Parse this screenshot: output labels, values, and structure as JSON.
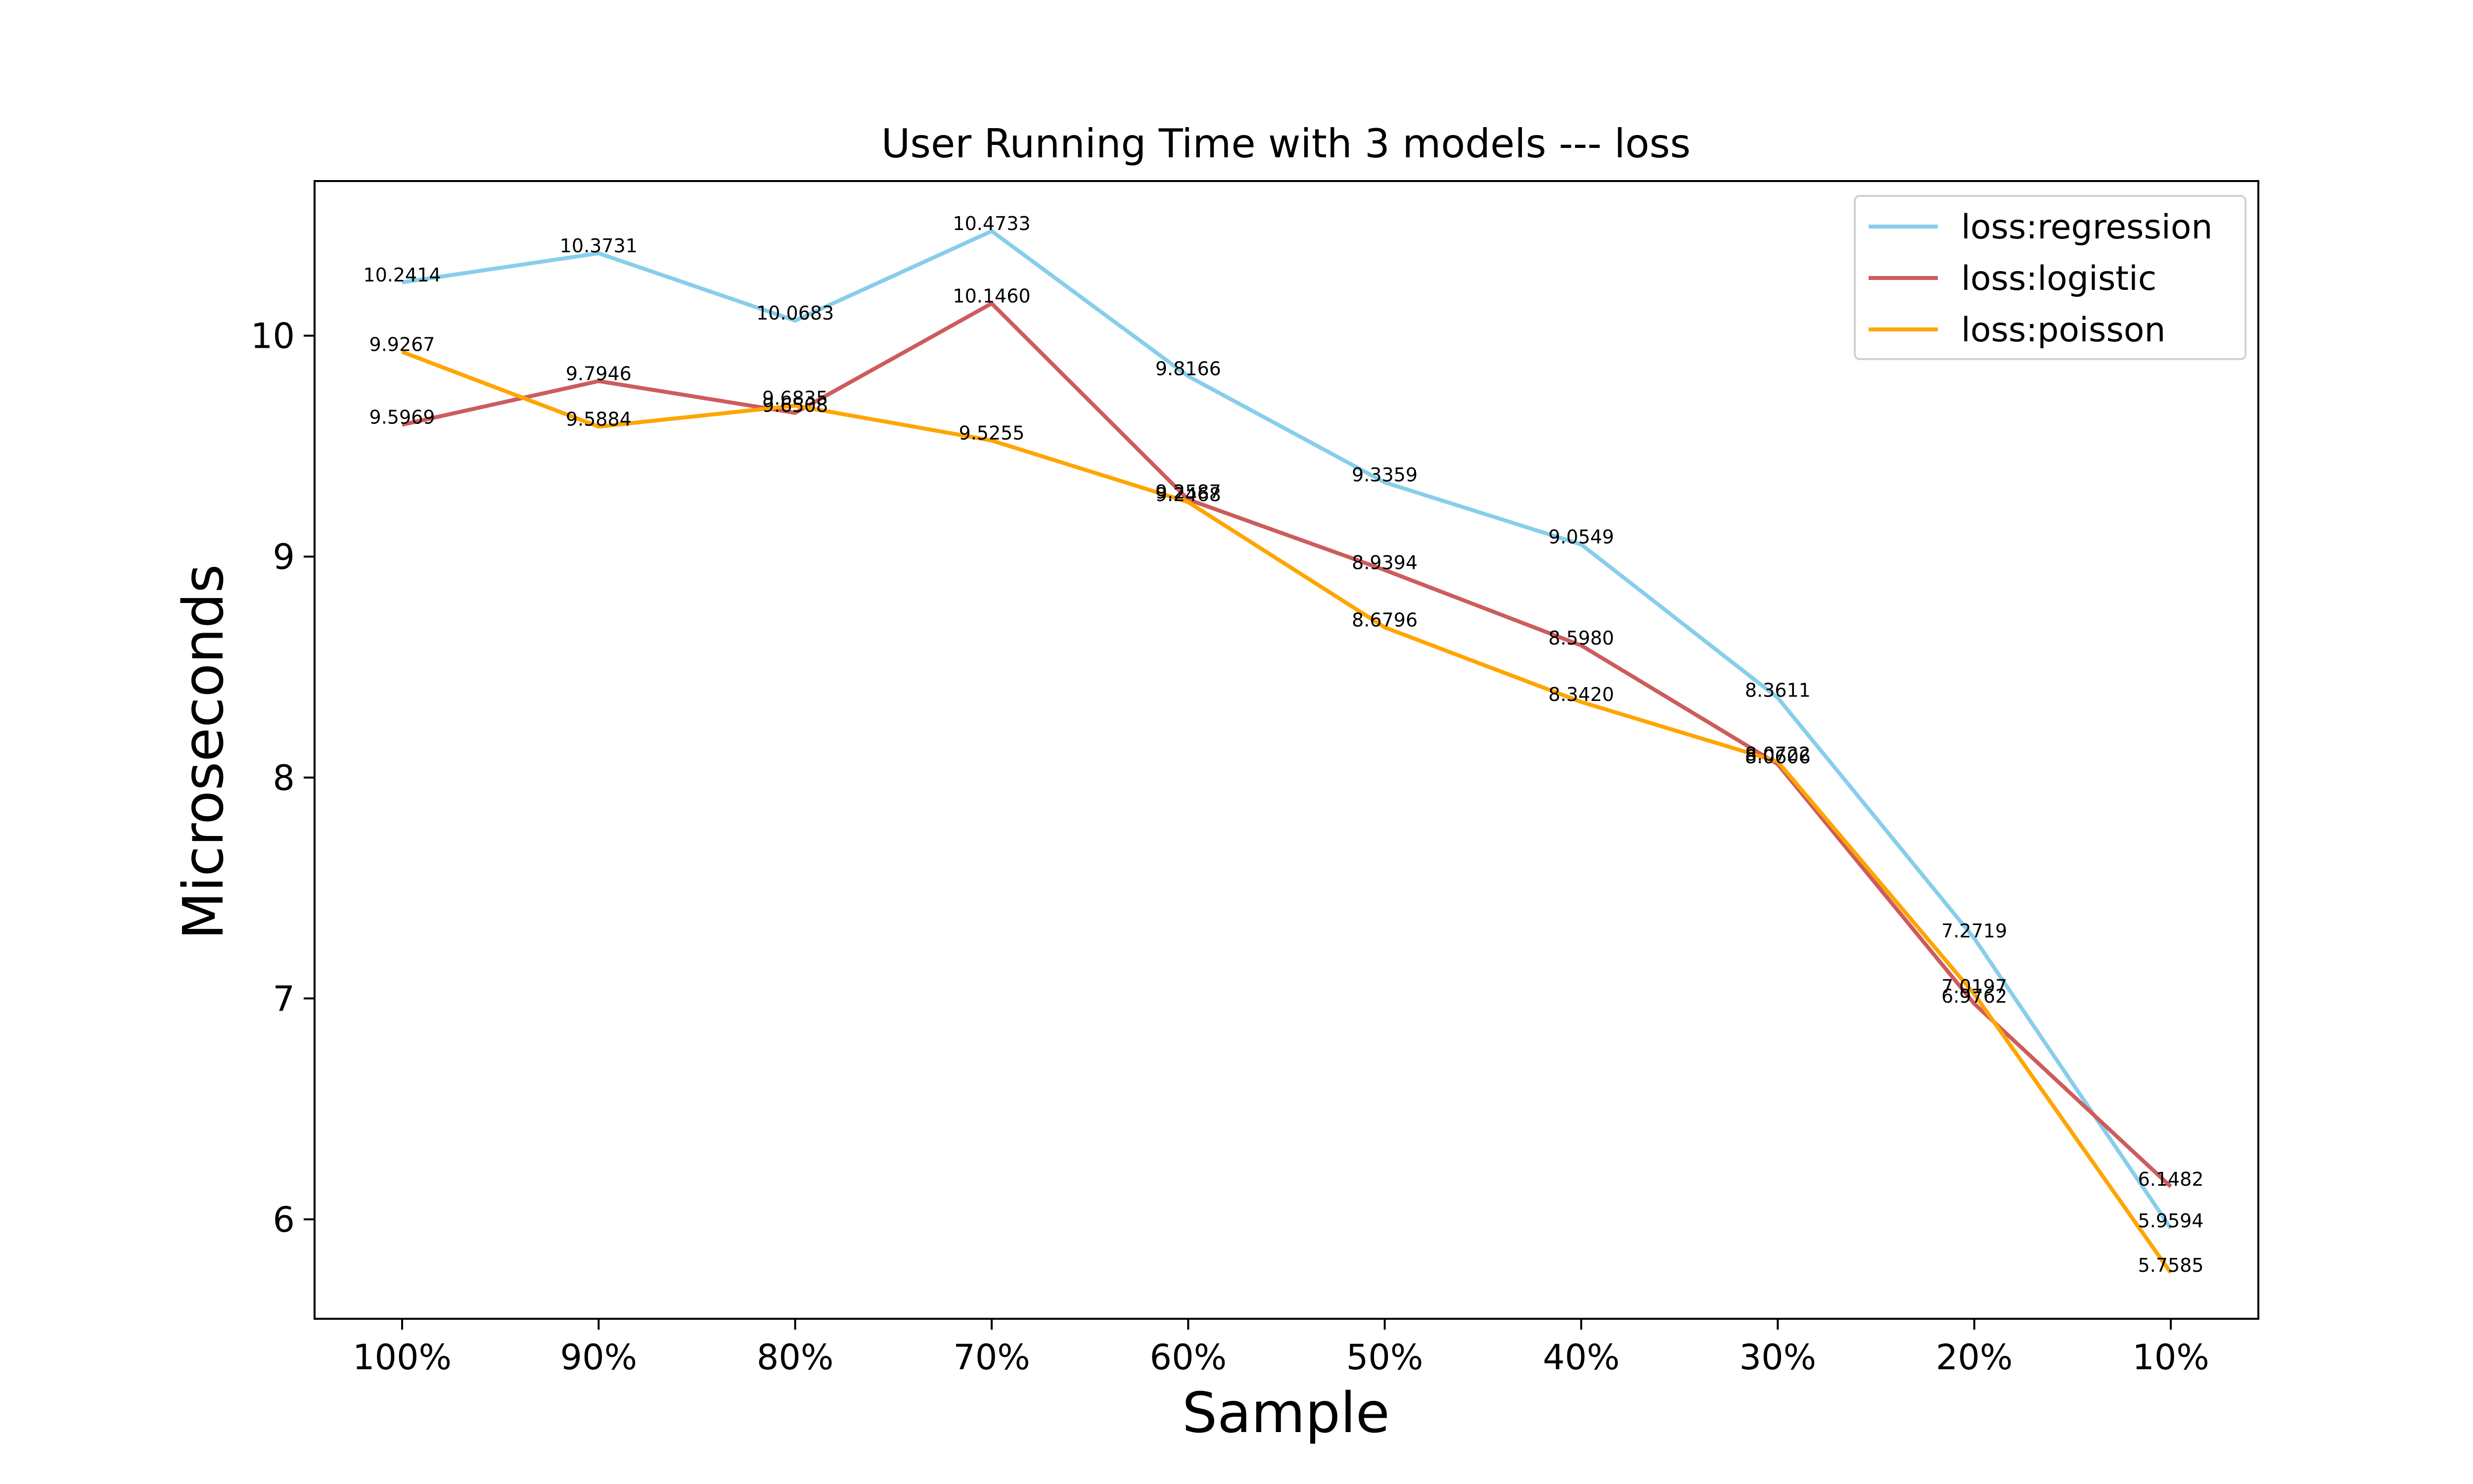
{
  "chart_data": {
    "type": "line",
    "title": "User Running Time with 3 models --- loss",
    "xlabel": "Sample",
    "ylabel": "Microseconds",
    "categories": [
      "100%",
      "90%",
      "80%",
      "70%",
      "60%",
      "50%",
      "40%",
      "30%",
      "20%",
      "10%"
    ],
    "ylim": [
      5.55,
      10.7
    ],
    "yticks": [
      6,
      7,
      8,
      9,
      10
    ],
    "ytick_labels": [
      "6",
      "7",
      "8",
      "9",
      "10"
    ],
    "grid": false,
    "legend_position": "top-right",
    "series": [
      {
        "name": "loss:regression",
        "color": "#87ceeb",
        "values": [
          10.2414,
          10.3731,
          10.0683,
          10.4733,
          9.8166,
          9.3359,
          9.0549,
          8.3611,
          7.2719,
          5.9594
        ],
        "labels": [
          "10.2414",
          "10.3731",
          "10.0683",
          "10.4733",
          "9.8166",
          "9.3359",
          "9.0549",
          "8.3611",
          "7.2719",
          "5.9594"
        ]
      },
      {
        "name": "loss:logistic",
        "color": "#cd5c5c",
        "values": [
          9.5969,
          9.7946,
          9.6508,
          10.146,
          9.2587,
          8.9394,
          8.598,
          8.0606,
          6.9762,
          6.1482
        ],
        "labels": [
          "9.5969",
          "9.7946",
          "9.6508",
          "10.1460",
          "9.2587",
          "8.9394",
          "8.5980",
          "8.0606",
          "6.9762",
          "6.1482"
        ]
      },
      {
        "name": "loss:poisson",
        "color": "#ffa500",
        "values": [
          9.9267,
          9.5884,
          9.6835,
          9.5255,
          9.2468,
          8.6796,
          8.342,
          8.0722,
          7.0197,
          5.7585
        ],
        "labels": [
          "9.9267",
          "9.5884",
          "9.6835",
          "9.5255",
          "9.2468",
          "8.6796",
          "8.3420",
          "8.0722",
          "7.0197",
          "5.7585"
        ]
      }
    ]
  }
}
